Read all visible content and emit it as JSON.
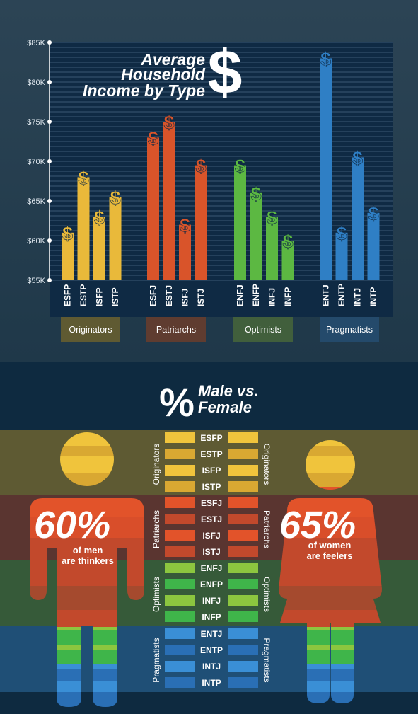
{
  "chart_data": {
    "type": "bar",
    "title_lines": [
      "Average",
      "Household",
      "Income by Type"
    ],
    "title_symbol": "$",
    "y_ticks": [
      "$85K",
      "$80K",
      "$75K",
      "$70K",
      "$65K",
      "$60K",
      "$55K"
    ],
    "ylim": [
      55,
      85
    ],
    "y_unit": "thousands USD",
    "grid": true,
    "bar_marker": "$",
    "groups": [
      {
        "name": "Originators",
        "color": "#e9b93a",
        "label_bg": "#5f5a32",
        "categories": [
          "ESFP",
          "ESTP",
          "ISFP",
          "ISTP"
        ],
        "values": [
          61,
          68,
          63,
          65.5
        ]
      },
      {
        "name": "Patriarchs",
        "color": "#d9542a",
        "label_bg": "#5f3c30",
        "categories": [
          "ESFJ",
          "ESTJ",
          "ISFJ",
          "ISTJ"
        ],
        "values": [
          73,
          75,
          62,
          69.5
        ]
      },
      {
        "name": "Optimists",
        "color": "#5cb842",
        "label_bg": "#415f3c",
        "categories": [
          "ENFJ",
          "ENFP",
          "INFJ",
          "INFP"
        ],
        "values": [
          69.5,
          66,
          63,
          60
        ]
      },
      {
        "name": "Pragmatists",
        "color": "#2f7fc5",
        "label_bg": "#244a6b",
        "categories": [
          "ENTJ",
          "ENTP",
          "INTJ",
          "INTP"
        ],
        "values": [
          83,
          61,
          70.5,
          63.5
        ]
      }
    ]
  },
  "gender": {
    "title_symbol": "%",
    "title_lines": [
      "Male vs.",
      "Female"
    ],
    "male_stat": "60%",
    "male_caption": [
      "of men",
      "are thinkers"
    ],
    "female_stat": "65%",
    "female_caption": [
      "of women",
      "are feelers"
    ],
    "band_colors": [
      "#5e5a33",
      "#5a3530",
      "#365a39",
      "#1f4f76"
    ],
    "groups": [
      {
        "name": "Originators",
        "types": [
          "ESFP",
          "ESTP",
          "ISFP",
          "ISTP"
        ],
        "shades": [
          "#f0c43c",
          "#d9a832",
          "#f0c43c",
          "#d9a832"
        ]
      },
      {
        "name": "Patriarchs",
        "types": [
          "ESFJ",
          "ESTJ",
          "ISFJ",
          "ISTJ"
        ],
        "shades": [
          "#e2532a",
          "#c2492c",
          "#e2532a",
          "#c2492c"
        ]
      },
      {
        "name": "Optimists",
        "types": [
          "ENFJ",
          "ENFP",
          "INFJ",
          "INFP"
        ],
        "shades": [
          "#8cc63f",
          "#3fb54a",
          "#8cc63f",
          "#3fb54a"
        ]
      },
      {
        "name": "Pragmatists",
        "types": [
          "ENTJ",
          "ENTP",
          "INTJ",
          "INTP"
        ],
        "shades": [
          "#3a8fd6",
          "#2a6fb5",
          "#3a8fd6",
          "#2a6fb5"
        ]
      }
    ]
  }
}
